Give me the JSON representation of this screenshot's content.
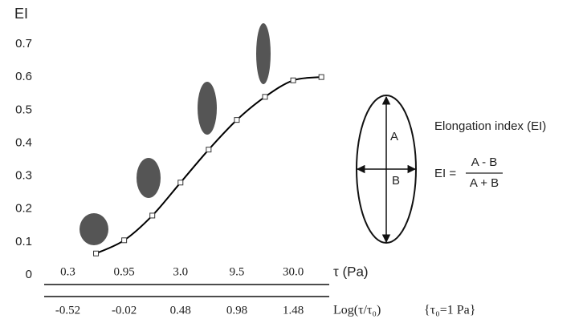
{
  "chart_data": {
    "type": "line",
    "y_label": "EI",
    "x_label": "τ (Pa)",
    "x2_label": "Log(τ/τ₀)",
    "x2_note": "{τ₀=1 Pa}",
    "x": [
      -0.27,
      -0.02,
      0.23,
      0.48,
      0.73,
      0.98,
      1.23,
      1.48,
      1.73
    ],
    "values": [
      0.065,
      0.105,
      0.18,
      0.28,
      0.38,
      0.47,
      0.54,
      0.59,
      0.6
    ],
    "color": "#000000",
    "xlim": [
      -0.73,
      1.8
    ],
    "xticks": [
      {
        "value": -0.52,
        "label": "0.3"
      },
      {
        "value": -0.02,
        "label": "0.95"
      },
      {
        "value": 0.48,
        "label": "3.0"
      },
      {
        "value": 0.98,
        "label": "9.5"
      },
      {
        "value": 1.48,
        "label": "30.0"
      }
    ],
    "x2ticks": [
      -0.52,
      -0.02,
      0.48,
      0.98,
      1.48
    ],
    "ylim": [
      0,
      0.7
    ],
    "yticks": [
      0,
      0.1,
      0.2,
      0.3,
      0.4,
      0.5,
      0.6,
      0.7
    ],
    "annotations": {
      "title": "Elongation index (EI)",
      "formula_lhs": "EI =",
      "numerator": "A - B",
      "denominator": "A + B",
      "major_axis": "A",
      "minor_axis": "B"
    }
  }
}
